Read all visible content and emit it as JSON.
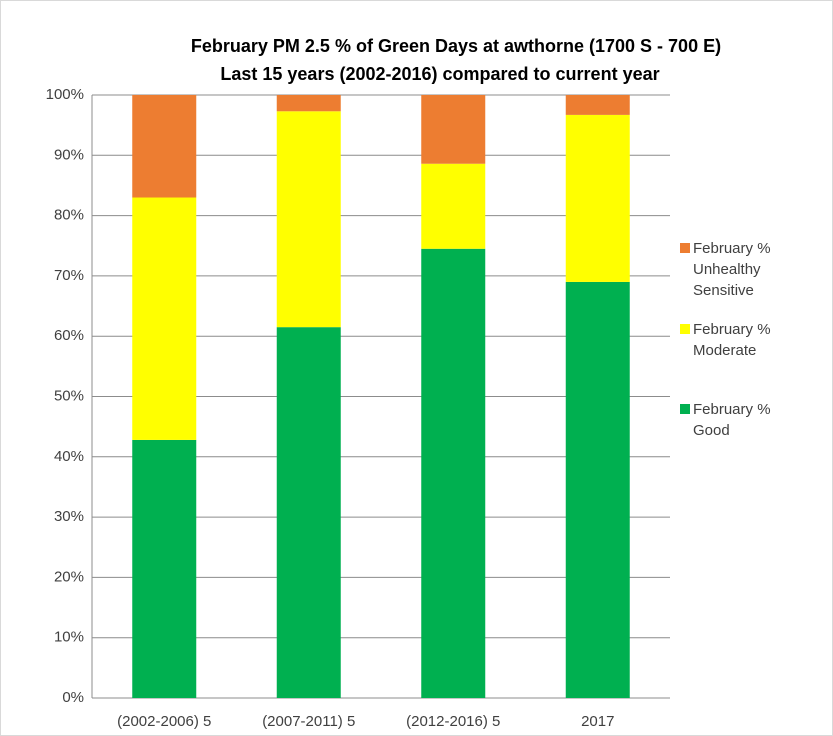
{
  "chart_data": {
    "type": "stacked_bar",
    "title": "February PM 2.5 % of Green Days at awthorne (1700 S - 700 E)",
    "subtitle": "Last 15 years (2002-2016) compared to current year",
    "categories": [
      "(2002-2006) 5",
      "(2007-2011) 5",
      "(2012-2016) 5",
      "2017"
    ],
    "series": [
      {
        "name": "February % Good",
        "color": "#00b050",
        "values": [
          42.8,
          61.5,
          74.5,
          69
        ]
      },
      {
        "name": "February % Moderate",
        "color": "#ffff00",
        "values": [
          40.2,
          35.8,
          14.1,
          27.7
        ]
      },
      {
        "name": "February % Unhealthy Sensitive",
        "color": "#ed7d31",
        "values": [
          17,
          2.7,
          11.4,
          3.3
        ]
      }
    ],
    "ylim": [
      0,
      100
    ],
    "yticks": [
      {
        "value": 0,
        "label": "0%"
      },
      {
        "value": 10,
        "label": "10%"
      },
      {
        "value": 20,
        "label": "20%"
      },
      {
        "value": 30,
        "label": "30%"
      },
      {
        "value": 40,
        "label": "40%"
      },
      {
        "value": 50,
        "label": "50%"
      },
      {
        "value": 60,
        "label": "60%"
      },
      {
        "value": 70,
        "label": "70%"
      },
      {
        "value": 80,
        "label": "80%"
      },
      {
        "value": 90,
        "label": "90%"
      },
      {
        "value": 100,
        "label": "100%"
      }
    ],
    "grid": true,
    "legend": "right"
  }
}
